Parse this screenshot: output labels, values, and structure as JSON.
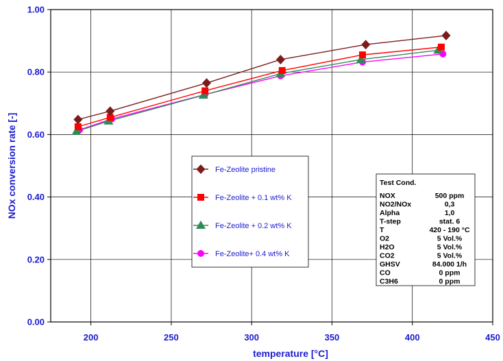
{
  "chart_data": {
    "type": "line",
    "xlabel": "temperature [°C]",
    "ylabel": "NOx conversion rate [-]",
    "xlim": [
      175,
      450
    ],
    "ylim": [
      0,
      1.0
    ],
    "x_ticks": [
      "200",
      "250",
      "300",
      "350",
      "400",
      "450"
    ],
    "y_ticks": [
      "0.00",
      "0.20",
      "0.40",
      "0.60",
      "0.80",
      "1.00"
    ],
    "grid": true,
    "legend_position": "center",
    "series": [
      {
        "name": "Fe-Zeolite pristine",
        "color": "#7b1c1c",
        "marker": "diamond",
        "x": [
          192,
          212,
          272,
          318,
          371,
          421
        ],
        "y": [
          0.648,
          0.675,
          0.765,
          0.84,
          0.888,
          0.917
        ]
      },
      {
        "name": "Fe-Zeolite + 0.1 wt% K",
        "color": "#ff0000",
        "marker": "square",
        "x": [
          192,
          212,
          271,
          319,
          369,
          418
        ],
        "y": [
          0.625,
          0.655,
          0.74,
          0.805,
          0.855,
          0.88
        ]
      },
      {
        "name": "Fe-Zeolite + 0.2 wt% K",
        "color": "#2e8b57",
        "marker": "triangle",
        "x": [
          191,
          211,
          270,
          318,
          368,
          416
        ],
        "y": [
          0.61,
          0.643,
          0.726,
          0.795,
          0.84,
          0.87
        ]
      },
      {
        "name": "Fe-Zeolite+ 0.4 wt% K",
        "color": "#ff00ff",
        "marker": "circle",
        "x": [
          193,
          213,
          271,
          318,
          369,
          419
        ],
        "y": [
          0.615,
          0.65,
          0.728,
          0.788,
          0.832,
          0.858
        ]
      }
    ],
    "annotation": {
      "title": "Test Cond.",
      "rows": [
        [
          "NOX",
          "500 ppm"
        ],
        [
          "NO2/NOx",
          "0,3"
        ],
        [
          "Alpha",
          "1,0"
        ],
        [
          "T-step",
          "stat. 6"
        ],
        [
          "T",
          "420 - 190 °C"
        ],
        [
          "O2",
          "5 Vol.%"
        ],
        [
          "H2O",
          "5 Vol.%"
        ],
        [
          "CO2",
          "5 Vol.%"
        ],
        [
          "GHSV",
          "84.000 1/h"
        ],
        [
          "CO",
          "0 ppm"
        ],
        [
          "C3H6",
          "0 ppm"
        ]
      ]
    }
  }
}
